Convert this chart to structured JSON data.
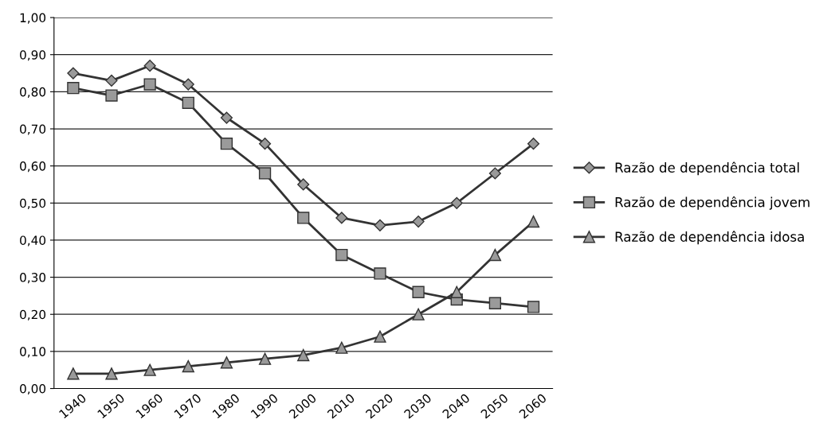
{
  "chart_data": {
    "type": "line",
    "categories": [
      "1940",
      "1950",
      "1960",
      "1970",
      "1980",
      "1990",
      "2000",
      "2010",
      "2020",
      "2030",
      "2040",
      "2050",
      "2060"
    ],
    "series": [
      {
        "name": "Razão de dependência total",
        "color": "#333333",
        "marker": "diamond",
        "values": [
          0.85,
          0.83,
          0.87,
          0.82,
          0.73,
          0.66,
          0.55,
          0.46,
          0.44,
          0.45,
          0.5,
          0.58,
          0.66
        ]
      },
      {
        "name": "Razão de dependência jovem",
        "color": "#333333",
        "marker": "square",
        "values": [
          0.81,
          0.79,
          0.82,
          0.77,
          0.66,
          0.58,
          0.46,
          0.36,
          0.31,
          0.26,
          0.24,
          0.23,
          0.22
        ]
      },
      {
        "name": "Razão de dependência idosa",
        "color": "#333333",
        "marker": "triangle",
        "values": [
          0.04,
          0.04,
          0.05,
          0.06,
          0.07,
          0.08,
          0.09,
          0.11,
          0.14,
          0.2,
          0.26,
          0.36,
          0.45
        ]
      }
    ],
    "ylim": [
      0,
      1
    ],
    "yticks": [
      {
        "value": 0,
        "label": "0,00"
      },
      {
        "value": 0.1,
        "label": "0,10"
      },
      {
        "value": 0.2,
        "label": "0,20"
      },
      {
        "value": 0.3,
        "label": "0,30"
      },
      {
        "value": 0.4,
        "label": "0,40"
      },
      {
        "value": 0.5,
        "label": "0,50"
      },
      {
        "value": 0.6,
        "label": "0,60"
      },
      {
        "value": 0.7,
        "label": "0,70"
      },
      {
        "value": 0.8,
        "label": "0,80"
      },
      {
        "value": 0.9,
        "label": "0,90"
      },
      {
        "value": 1,
        "label": "1,00"
      }
    ],
    "grid": "y",
    "legend": "right",
    "line_style": "solid"
  }
}
